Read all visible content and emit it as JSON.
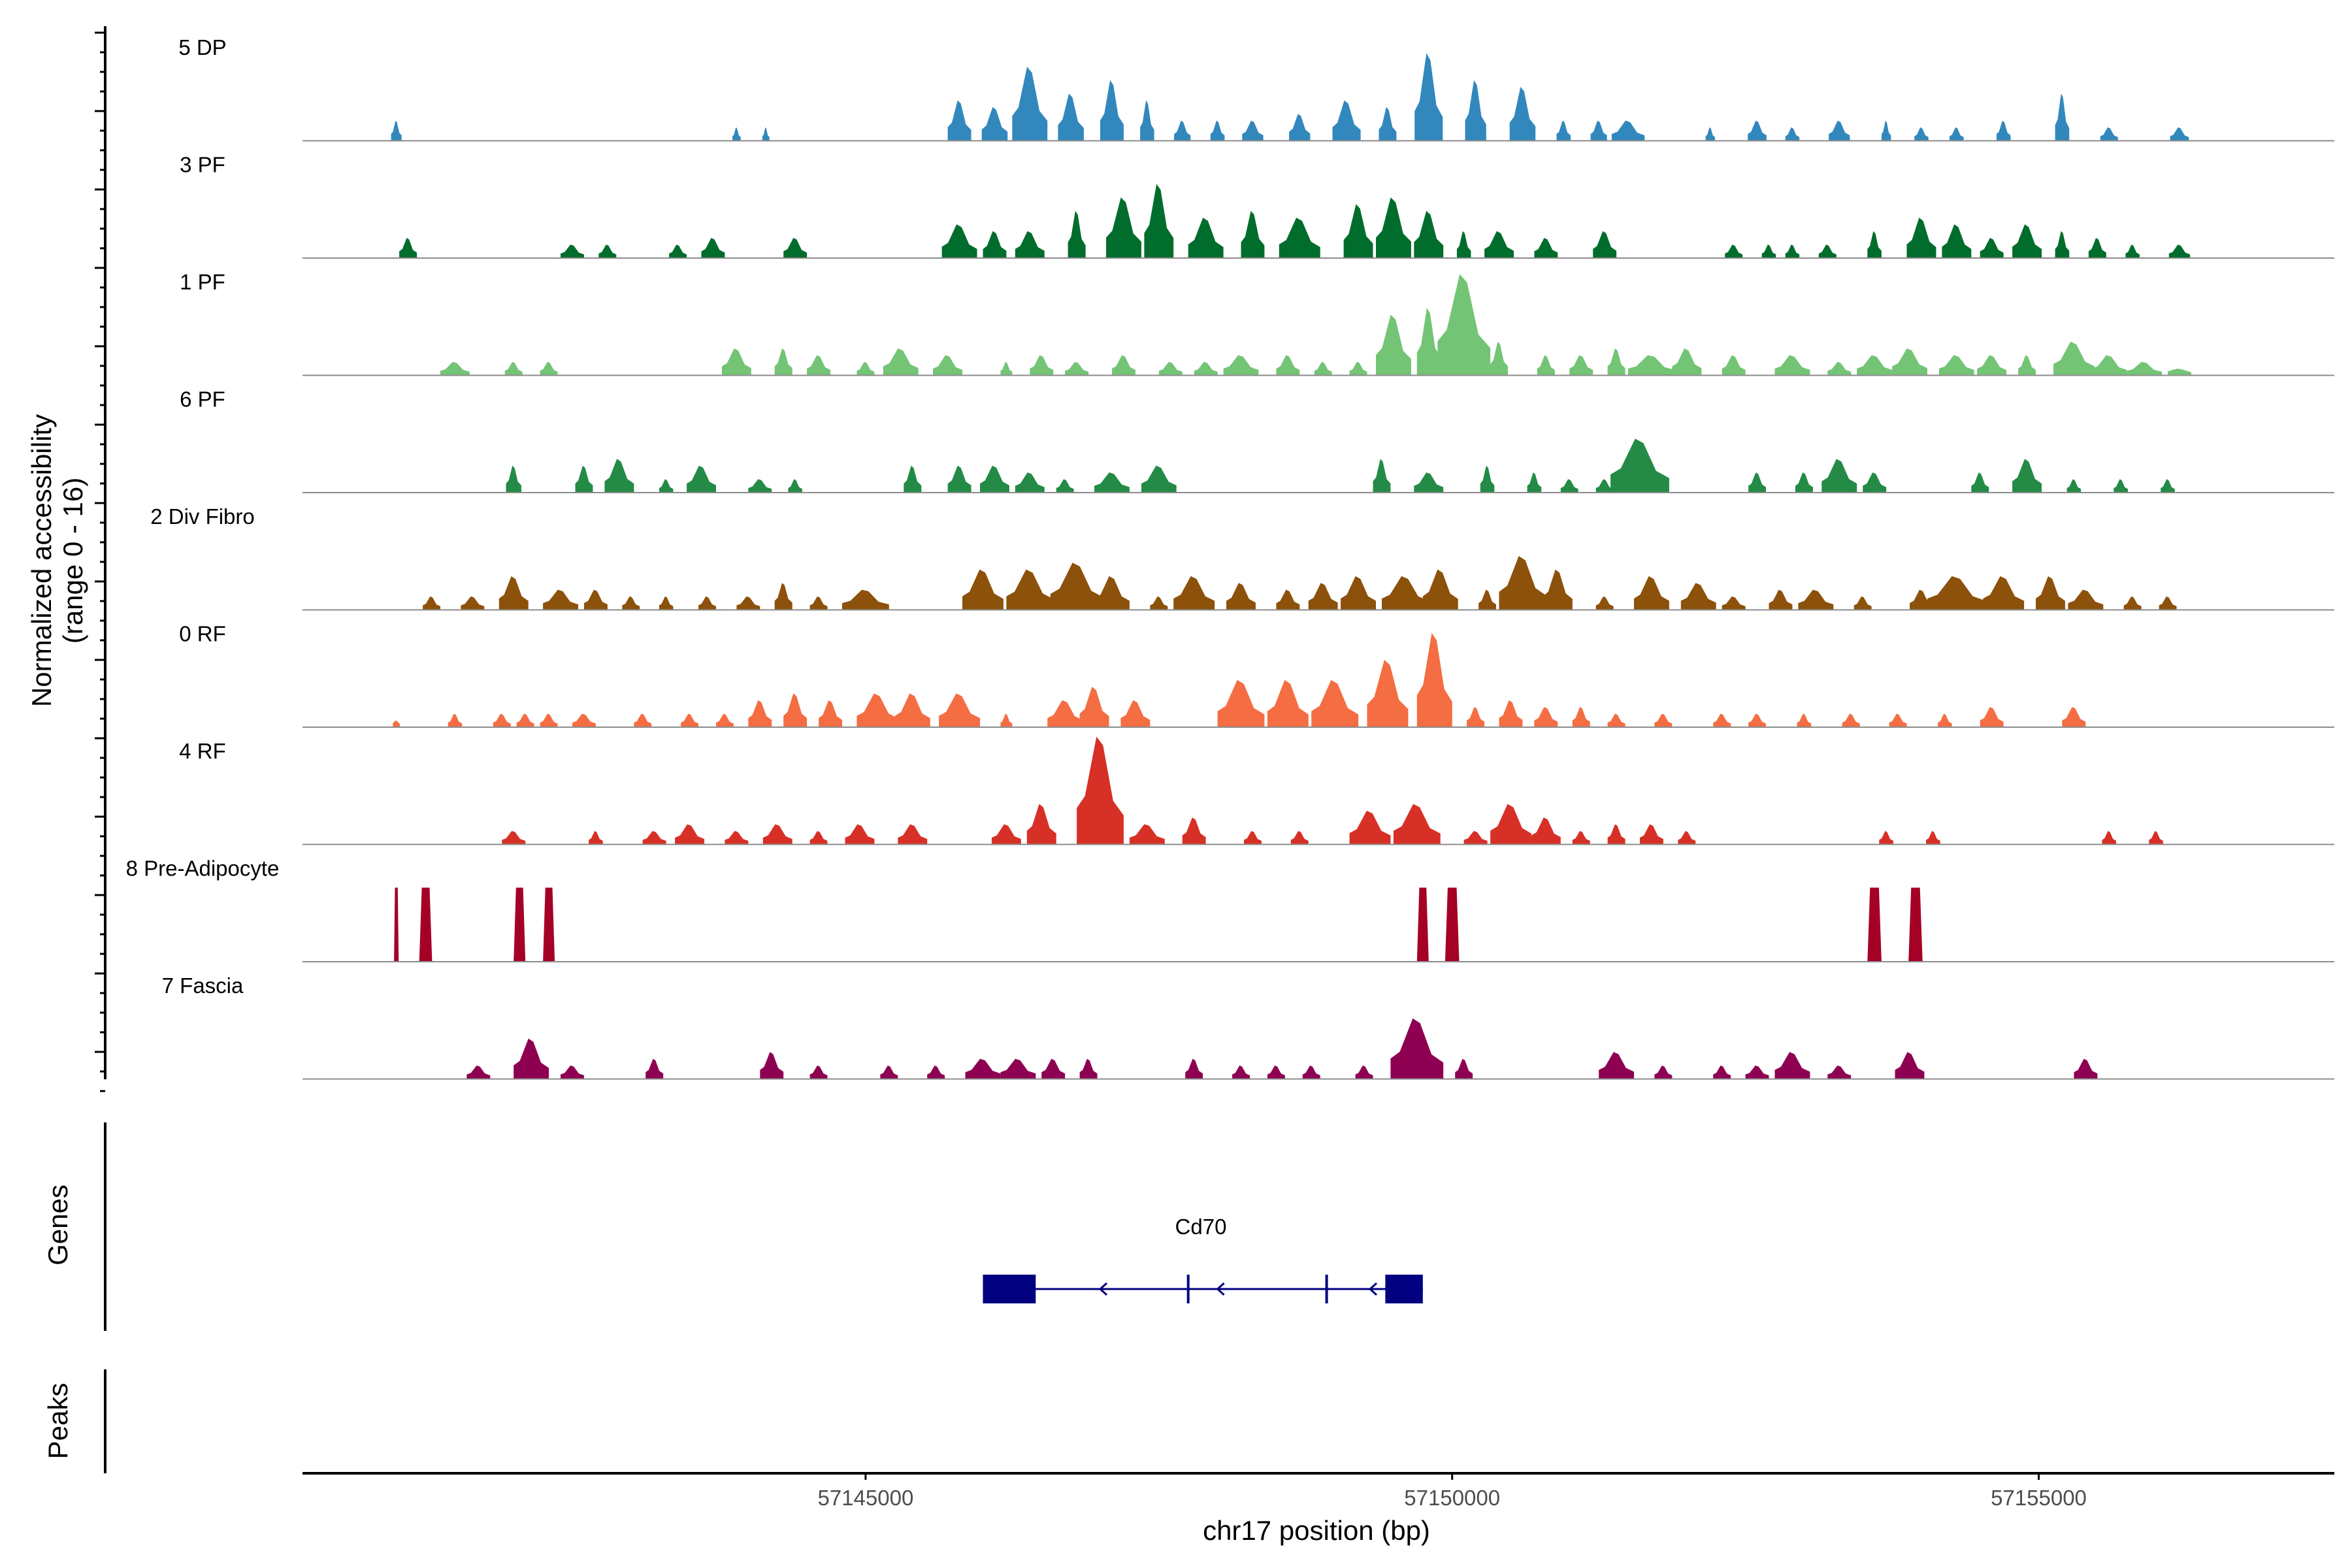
{
  "chart_data": {
    "type": "area",
    "title": "",
    "ylabel": "Normalized accessibility",
    "ylabel_range": "(range 0 - 16)",
    "xlabel": "chr17 position (bp)",
    "xlim": [
      57140200,
      57157520
    ],
    "ylim": [
      0,
      16
    ],
    "x_ticks": [
      {
        "value": 57145000,
        "label": "57145000"
      },
      {
        "value": 57150000,
        "label": "57150000"
      },
      {
        "value": 57155000,
        "label": "57155000"
      }
    ],
    "series": [
      {
        "name": "5 DP",
        "color": "#3288bd",
        "x": [
          57141000,
          57143900,
          57144150,
          57145800,
          57146100,
          57146400,
          57146750,
          57147100,
          57147400,
          57147700,
          57148000,
          57148300,
          57148700,
          57149100,
          57149450,
          57149800,
          57150200,
          57150600,
          57150950,
          57151250,
          57151500,
          57152200,
          57152600,
          57152900,
          57153300,
          57153700,
          57154000,
          57154300,
          57154700,
          57155200,
          57155600,
          57156200
        ],
        "values": [
          3,
          2,
          2,
          6,
          5,
          11,
          7,
          9,
          6,
          3,
          3,
          3,
          4,
          6,
          5,
          13,
          9,
          8,
          3,
          3,
          3,
          2,
          3,
          2,
          3,
          3,
          2,
          2,
          3,
          7,
          2,
          2
        ],
        "widths": [
          90,
          70,
          60,
          200,
          220,
          300,
          220,
          200,
          120,
          140,
          120,
          180,
          180,
          240,
          150,
          240,
          180,
          220,
          120,
          140,
          280,
          80,
          160,
          120,
          180,
          80,
          120,
          120,
          120,
          120,
          150,
          160
        ]
      },
      {
        "name": "3 PF",
        "color": "#006d2c",
        "x": [
          57141100,
          57142500,
          57142800,
          57143400,
          57143700,
          57144400,
          57145800,
          57146100,
          57146400,
          57146800,
          57147200,
          57147500,
          57147900,
          57148300,
          57148700,
          57149200,
          57149500,
          57149800,
          57150100,
          57150400,
          57150800,
          57151300,
          57152400,
          57152700,
          57152900,
          57153200,
          57153600,
          57154000,
          57154300,
          57154600,
          57154900,
          57155200,
          57155500,
          57155800,
          57156200
        ],
        "values": [
          3,
          2,
          2,
          2,
          3,
          3,
          5,
          4,
          4,
          7,
          9,
          11,
          6,
          7,
          6,
          8,
          9,
          7,
          4,
          4,
          3,
          4,
          2,
          2,
          2,
          2,
          4,
          6,
          5,
          3,
          5,
          4,
          3,
          2,
          2
        ],
        "widths": [
          150,
          200,
          150,
          150,
          200,
          200,
          300,
          200,
          250,
          150,
          300,
          250,
          300,
          200,
          350,
          250,
          300,
          250,
          120,
          250,
          200,
          200,
          150,
          120,
          120,
          150,
          120,
          250,
          250,
          200,
          250,
          120,
          150,
          120,
          180
        ]
      },
      {
        "name": "1 PF",
        "color": "#74c476",
        "x": [
          57141500,
          57142000,
          57142300,
          57143900,
          57144300,
          57144600,
          57145000,
          57145300,
          57145700,
          57146200,
          57146500,
          57146800,
          57147200,
          57147600,
          57147900,
          57148200,
          57148600,
          57148900,
          57149200,
          57149500,
          57149800,
          57150100,
          57150400,
          57150800,
          57151100,
          57151400,
          57151700,
          57152000,
          57152400,
          57152900,
          57153300,
          57153600,
          57153900,
          57154300,
          57154600,
          57154900,
          57155300,
          57155600,
          57155900,
          57156200
        ],
        "values": [
          2,
          2,
          2,
          4,
          4,
          3,
          2,
          4,
          3,
          2,
          3,
          2,
          3,
          2,
          2,
          3,
          3,
          2,
          2,
          9,
          10,
          15,
          5,
          3,
          3,
          4,
          3,
          4,
          3,
          3,
          2,
          3,
          4,
          3,
          3,
          3,
          5,
          3,
          2,
          1
        ],
        "widths": [
          250,
          150,
          150,
          250,
          150,
          200,
          150,
          300,
          250,
          100,
          200,
          200,
          200,
          200,
          200,
          300,
          200,
          150,
          150,
          300,
          200,
          450,
          150,
          150,
          200,
          150,
          400,
          250,
          200,
          300,
          200,
          300,
          300,
          300,
          250,
          150,
          350,
          300,
          300,
          200
        ]
      },
      {
        "name": "6 PF",
        "color": "#238b45",
        "x": [
          57142000,
          57142600,
          57142900,
          57143300,
          57143600,
          57144100,
          57144400,
          57145400,
          57145800,
          57146100,
          57146400,
          57146700,
          57147100,
          57147500,
          57149400,
          57149800,
          57150300,
          57150700,
          57151000,
          57151300,
          57151600,
          57152600,
          57153000,
          57153300,
          57153600,
          57154500,
          57154900,
          57155300,
          57155700,
          57156100
        ],
        "values": [
          4,
          4,
          5,
          2,
          4,
          2,
          2,
          4,
          4,
          4,
          3,
          2,
          3,
          4,
          5,
          3,
          4,
          3,
          2,
          2,
          8,
          3,
          3,
          5,
          3,
          3,
          5,
          2,
          2,
          2
        ],
        "widths": [
          130,
          150,
          250,
          120,
          250,
          200,
          120,
          150,
          200,
          250,
          250,
          150,
          300,
          300,
          150,
          250,
          120,
          120,
          150,
          150,
          500,
          150,
          150,
          300,
          200,
          150,
          250,
          120,
          120,
          120
        ]
      },
      {
        "name": "2 Div Fibro",
        "color": "#8c510a",
        "x": [
          57141300,
          57141650,
          57142000,
          57142400,
          57142700,
          57143000,
          57143300,
          57143650,
          57144000,
          57144300,
          57144600,
          57145000,
          57146000,
          57146400,
          57146800,
          57147100,
          57147500,
          57147800,
          57148200,
          57148600,
          57148900,
          57149200,
          57149600,
          57149900,
          57150300,
          57150600,
          57150900,
          57151300,
          57151700,
          57152100,
          57152400,
          57152800,
          57153100,
          57153500,
          57154000,
          57154300,
          57154700,
          57155100,
          57155400,
          57155800,
          57156100
        ],
        "values": [
          2,
          2,
          5,
          3,
          3,
          2,
          2,
          2,
          2,
          4,
          2,
          3,
          6,
          6,
          7,
          5,
          2,
          5,
          4,
          3,
          4,
          5,
          5,
          6,
          3,
          8,
          6,
          2,
          5,
          4,
          2,
          3,
          3,
          2,
          3,
          5,
          5,
          5,
          3,
          2,
          2
        ],
        "widths": [
          150,
          200,
          250,
          300,
          200,
          150,
          120,
          150,
          200,
          150,
          150,
          400,
          350,
          400,
          450,
          300,
          150,
          350,
          250,
          200,
          250,
          300,
          400,
          300,
          150,
          400,
          250,
          150,
          300,
          300,
          200,
          200,
          300,
          150,
          200,
          500,
          350,
          250,
          300,
          150,
          150
        ]
      },
      {
        "name": "0 RF",
        "color": "#f46d43",
        "x": [
          57141000,
          57141500,
          57141900,
          57142100,
          57142300,
          57142600,
          57143100,
          57143500,
          57143800,
          57144100,
          57144400,
          57144700,
          57145100,
          57145400,
          57145800,
          57146200,
          57146700,
          57146950,
          57147300,
          57148200,
          57148600,
          57149000,
          57149450,
          57149850,
          57150200,
          57150500,
          57150800,
          57151100,
          57151400,
          57151800,
          57152300,
          57152600,
          57153000,
          57153400,
          57153800,
          57154200,
          57154600,
          57155300
        ],
        "values": [
          1,
          2,
          2,
          2,
          2,
          2,
          2,
          2,
          2,
          4,
          5,
          4,
          5,
          5,
          5,
          2,
          4,
          6,
          4,
          7,
          7,
          7,
          10,
          14,
          3,
          4,
          3,
          3,
          2,
          2,
          2,
          2,
          2,
          2,
          2,
          2,
          3,
          3
        ],
        "widths": [
          60,
          120,
          150,
          150,
          150,
          200,
          150,
          150,
          150,
          200,
          200,
          200,
          350,
          300,
          350,
          100,
          300,
          250,
          250,
          400,
          350,
          400,
          350,
          300,
          150,
          200,
          200,
          150,
          150,
          150,
          150,
          150,
          120,
          150,
          150,
          120,
          200,
          200
        ]
      },
      {
        "name": "4 RF",
        "color": "#d73027",
        "x": [
          57142000,
          57142700,
          57143200,
          57143500,
          57143900,
          57144250,
          57144600,
          57144950,
          57145400,
          57146200,
          57146500,
          57147000,
          57147400,
          57147800,
          57148300,
          57148700,
          57149300,
          57149700,
          57150200,
          57150500,
          57150800,
          57151100,
          57151400,
          57151700,
          57152000,
          57153700,
          57154100,
          57155600,
          57156000
        ],
        "values": [
          2,
          2,
          2,
          3,
          2,
          3,
          2,
          3,
          3,
          3,
          6,
          16,
          3,
          4,
          2,
          2,
          5,
          6,
          2,
          6,
          4,
          2,
          3,
          3,
          2,
          2,
          2,
          2,
          2
        ],
        "widths": [
          200,
          120,
          200,
          250,
          200,
          250,
          150,
          250,
          250,
          250,
          250,
          400,
          300,
          200,
          150,
          150,
          350,
          400,
          200,
          350,
          250,
          150,
          150,
          200,
          150,
          120,
          120,
          120,
          120
        ]
      },
      {
        "name": "8 Pre-Adipocyte",
        "color": "#a50026",
        "x": [
          57141000,
          57141250,
          57142050,
          57142300,
          57149750,
          57150000,
          57153600,
          57153950
        ],
        "values": [
          11,
          11,
          11,
          11,
          11,
          11,
          11,
          11
        ],
        "widths": [
          40,
          110,
          100,
          100,
          100,
          120,
          120,
          120
        ]
      },
      {
        "name": "7 Fascia",
        "color": "#8e0152",
        "x": [
          57141700,
          57142150,
          57142500,
          57143200,
          57144200,
          57144600,
          57145200,
          57145600,
          57146000,
          57146300,
          57146600,
          57146900,
          57147800,
          57148200,
          57148500,
          57148800,
          57149250,
          57149700,
          57150100,
          57151400,
          57151800,
          57152300,
          57152600,
          57152900,
          57153300,
          57153900,
          57155400
        ],
        "values": [
          2,
          6,
          2,
          3,
          4,
          2,
          2,
          2,
          3,
          3,
          3,
          3,
          3,
          2,
          2,
          2,
          2,
          9,
          3,
          4,
          2,
          2,
          2,
          4,
          2,
          4,
          3
        ],
        "widths": [
          200,
          300,
          200,
          150,
          200,
          150,
          150,
          150,
          300,
          300,
          200,
          150,
          150,
          150,
          150,
          150,
          150,
          450,
          150,
          300,
          150,
          150,
          200,
          300,
          200,
          250,
          200
        ]
      }
    ],
    "gene": {
      "name": "Cd70",
      "strand": "-",
      "start": 57146000,
      "end": 57149750,
      "exons": [
        [
          57146000,
          57146450
        ],
        [
          57147750,
          57147755
        ],
        [
          57148930,
          57148935
        ],
        [
          57149430,
          57149750
        ]
      ],
      "color": "#000080"
    },
    "track_titles": {
      "genes": "Genes",
      "peaks": "Peaks"
    }
  }
}
